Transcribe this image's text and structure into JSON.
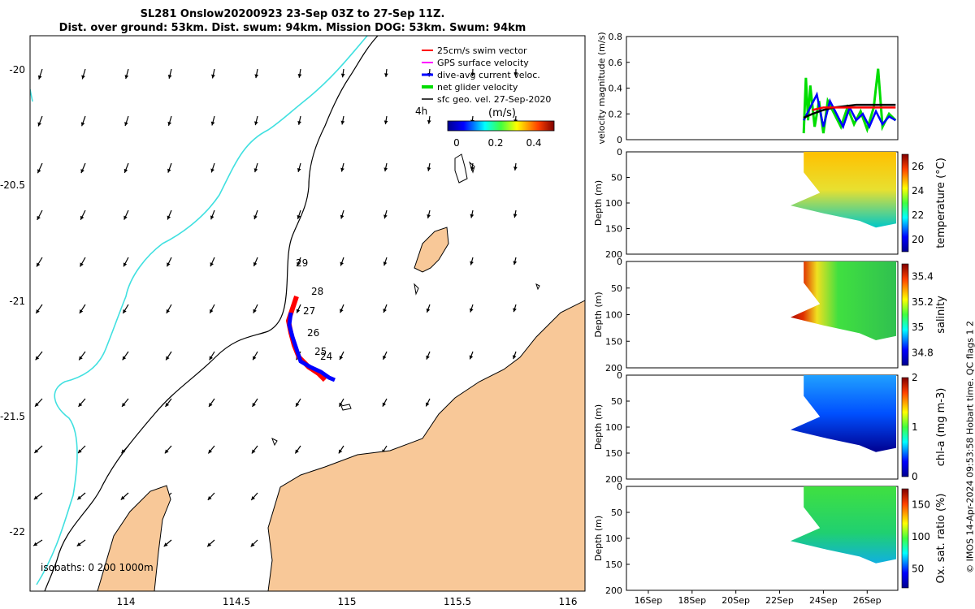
{
  "header": {
    "title_line1": "SL281 Onslow20200923 23-Sep 03Z to 27-Sep 11Z.",
    "title_line2": "Dist. over ground: 53km. Dist. swum: 94km. Mission DOG: 53km. Swum: 94km"
  },
  "map": {
    "lat_ticks": [
      "-20",
      "-20.5",
      "-21",
      "-21.5",
      "-22"
    ],
    "lon_ticks": [
      "114",
      "114.5",
      "115",
      "115.5",
      "116"
    ],
    "day_labels": [
      "29",
      "28",
      "27",
      "26",
      "25",
      "24"
    ],
    "hour_label": "4h",
    "isobath_note": "isobaths: 0  200  1000m",
    "legend": [
      {
        "label": "25cm/s swim vector",
        "color": "#ff0000"
      },
      {
        "label": "GPS surface velocity",
        "color": "#ff00ff"
      },
      {
        "label": "dive-avg current veloc.",
        "color": "#0000ff"
      },
      {
        "label": "net glider velocity",
        "color": "#00dd00"
      },
      {
        "label": "sfc geo. vel. 27-Sep-2020",
        "color": "#000000"
      }
    ],
    "colorbar": {
      "label": "(m/s)",
      "ticks": [
        "0",
        "0.2",
        "0.4"
      ]
    },
    "land_color": "#f8c898",
    "isobath_200_color": "#000000",
    "isobath_1000_color": "#40e0e0"
  },
  "chart_data": [
    {
      "type": "line",
      "title": "",
      "ylabel": "velocity magnitude (m/s)",
      "ylim": [
        0,
        0.8
      ],
      "y_ticks": [
        "0",
        "0.2",
        "0.4",
        "0.6",
        "0.8"
      ],
      "x_ticks": [
        "16Sep",
        "18Sep",
        "20Sep",
        "22Sep",
        "24Sep",
        "26Sep"
      ],
      "series": [
        {
          "name": "net glider velocity",
          "color": "#00dd00",
          "x": [
            23.1,
            23.2,
            23.3,
            23.4,
            23.6,
            23.8,
            24.0,
            24.2,
            24.5,
            24.8,
            25.1,
            25.4,
            25.7,
            26.0,
            26.3,
            26.5,
            26.7,
            27.0,
            27.3
          ],
          "values": [
            0.05,
            0.48,
            0.15,
            0.42,
            0.1,
            0.3,
            0.05,
            0.3,
            0.2,
            0.1,
            0.25,
            0.12,
            0.22,
            0.08,
            0.25,
            0.55,
            0.1,
            0.2,
            0.15
          ]
        },
        {
          "name": "dive-avg current veloc.",
          "color": "#0000ff",
          "x": [
            23.1,
            23.4,
            23.7,
            24.0,
            24.3,
            24.6,
            24.9,
            25.2,
            25.5,
            25.8,
            26.1,
            26.4,
            26.7,
            27.0,
            27.3
          ],
          "values": [
            0.15,
            0.25,
            0.35,
            0.1,
            0.3,
            0.2,
            0.1,
            0.25,
            0.15,
            0.2,
            0.1,
            0.22,
            0.12,
            0.18,
            0.15
          ]
        },
        {
          "name": "sfc geo. vel.",
          "color": "#000000",
          "x": [
            23.1,
            23.5,
            24.0,
            24.5,
            25.0,
            25.5,
            26.0,
            26.5,
            27.0,
            27.3
          ],
          "values": [
            0.17,
            0.2,
            0.23,
            0.25,
            0.26,
            0.27,
            0.27,
            0.27,
            0.27,
            0.27
          ]
        },
        {
          "name": "swim vector",
          "color": "#ff0000",
          "x": [
            23.5,
            24.0,
            24.5,
            25.0,
            25.5,
            26.0,
            26.5,
            27.0,
            27.3
          ],
          "values": [
            0.23,
            0.25,
            0.25,
            0.25,
            0.25,
            0.25,
            0.25,
            0.25,
            0.25
          ]
        }
      ]
    },
    {
      "type": "heatmap",
      "ylabel": "Depth (m)",
      "colorbar_label": "temperature (°C)",
      "y_ticks": [
        "0",
        "50",
        "100",
        "150",
        "200"
      ],
      "cbar_ticks": [
        "26",
        "24",
        "22",
        "20"
      ],
      "clim": [
        19,
        27
      ]
    },
    {
      "type": "heatmap",
      "ylabel": "Depth (m)",
      "colorbar_label": "salinity",
      "y_ticks": [
        "0",
        "50",
        "100",
        "150",
        "200"
      ],
      "cbar_ticks": [
        "35.4",
        "35.2",
        "35",
        "34.8"
      ],
      "clim": [
        34.7,
        35.5
      ]
    },
    {
      "type": "heatmap",
      "ylabel": "Depth (m)",
      "colorbar_label": "chl-a (mg m-3)",
      "y_ticks": [
        "0",
        "50",
        "100",
        "150",
        "200"
      ],
      "cbar_ticks": [
        "2",
        "1",
        "0"
      ],
      "clim": [
        0,
        2
      ]
    },
    {
      "type": "heatmap",
      "ylabel": "Depth (m)",
      "colorbar_label": "Ox. sat. ratio (%)",
      "y_ticks": [
        "0",
        "50",
        "100",
        "150",
        "200"
      ],
      "cbar_ticks": [
        "150",
        "100",
        "50"
      ],
      "clim": [
        20,
        175
      ]
    }
  ],
  "footer": {
    "side_note": "© IMOS 14-Apr-2024 09:53:58 Hobart time. QC flags 1  2"
  }
}
